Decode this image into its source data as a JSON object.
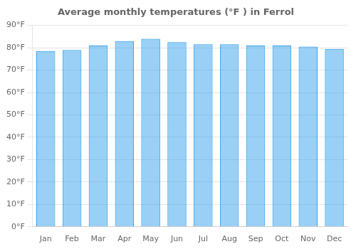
{
  "chart_data": {
    "type": "bar",
    "title": "Average monthly temperatures (°F ) in Ferrol",
    "categories": [
      "Jan",
      "Feb",
      "Mar",
      "Apr",
      "May",
      "Jun",
      "Jul",
      "Aug",
      "Sep",
      "Oct",
      "Nov",
      "Dec"
    ],
    "values": [
      78.5,
      79.0,
      81.0,
      83.0,
      84.0,
      82.5,
      81.5,
      81.5,
      81.0,
      81.0,
      80.5,
      79.5
    ],
    "ylim": [
      0,
      90
    ],
    "yticks": [
      {
        "value": 0,
        "label": "0°F"
      },
      {
        "value": 10,
        "label": "10°F"
      },
      {
        "value": 20,
        "label": "20°F"
      },
      {
        "value": 30,
        "label": "30°F"
      },
      {
        "value": 40,
        "label": "40°F"
      },
      {
        "value": 50,
        "label": "50°F"
      },
      {
        "value": 60,
        "label": "60°F"
      },
      {
        "value": 70,
        "label": "70°F"
      },
      {
        "value": 80,
        "label": "80°F"
      },
      {
        "value": 90,
        "label": "90°F"
      }
    ],
    "grid": true
  }
}
